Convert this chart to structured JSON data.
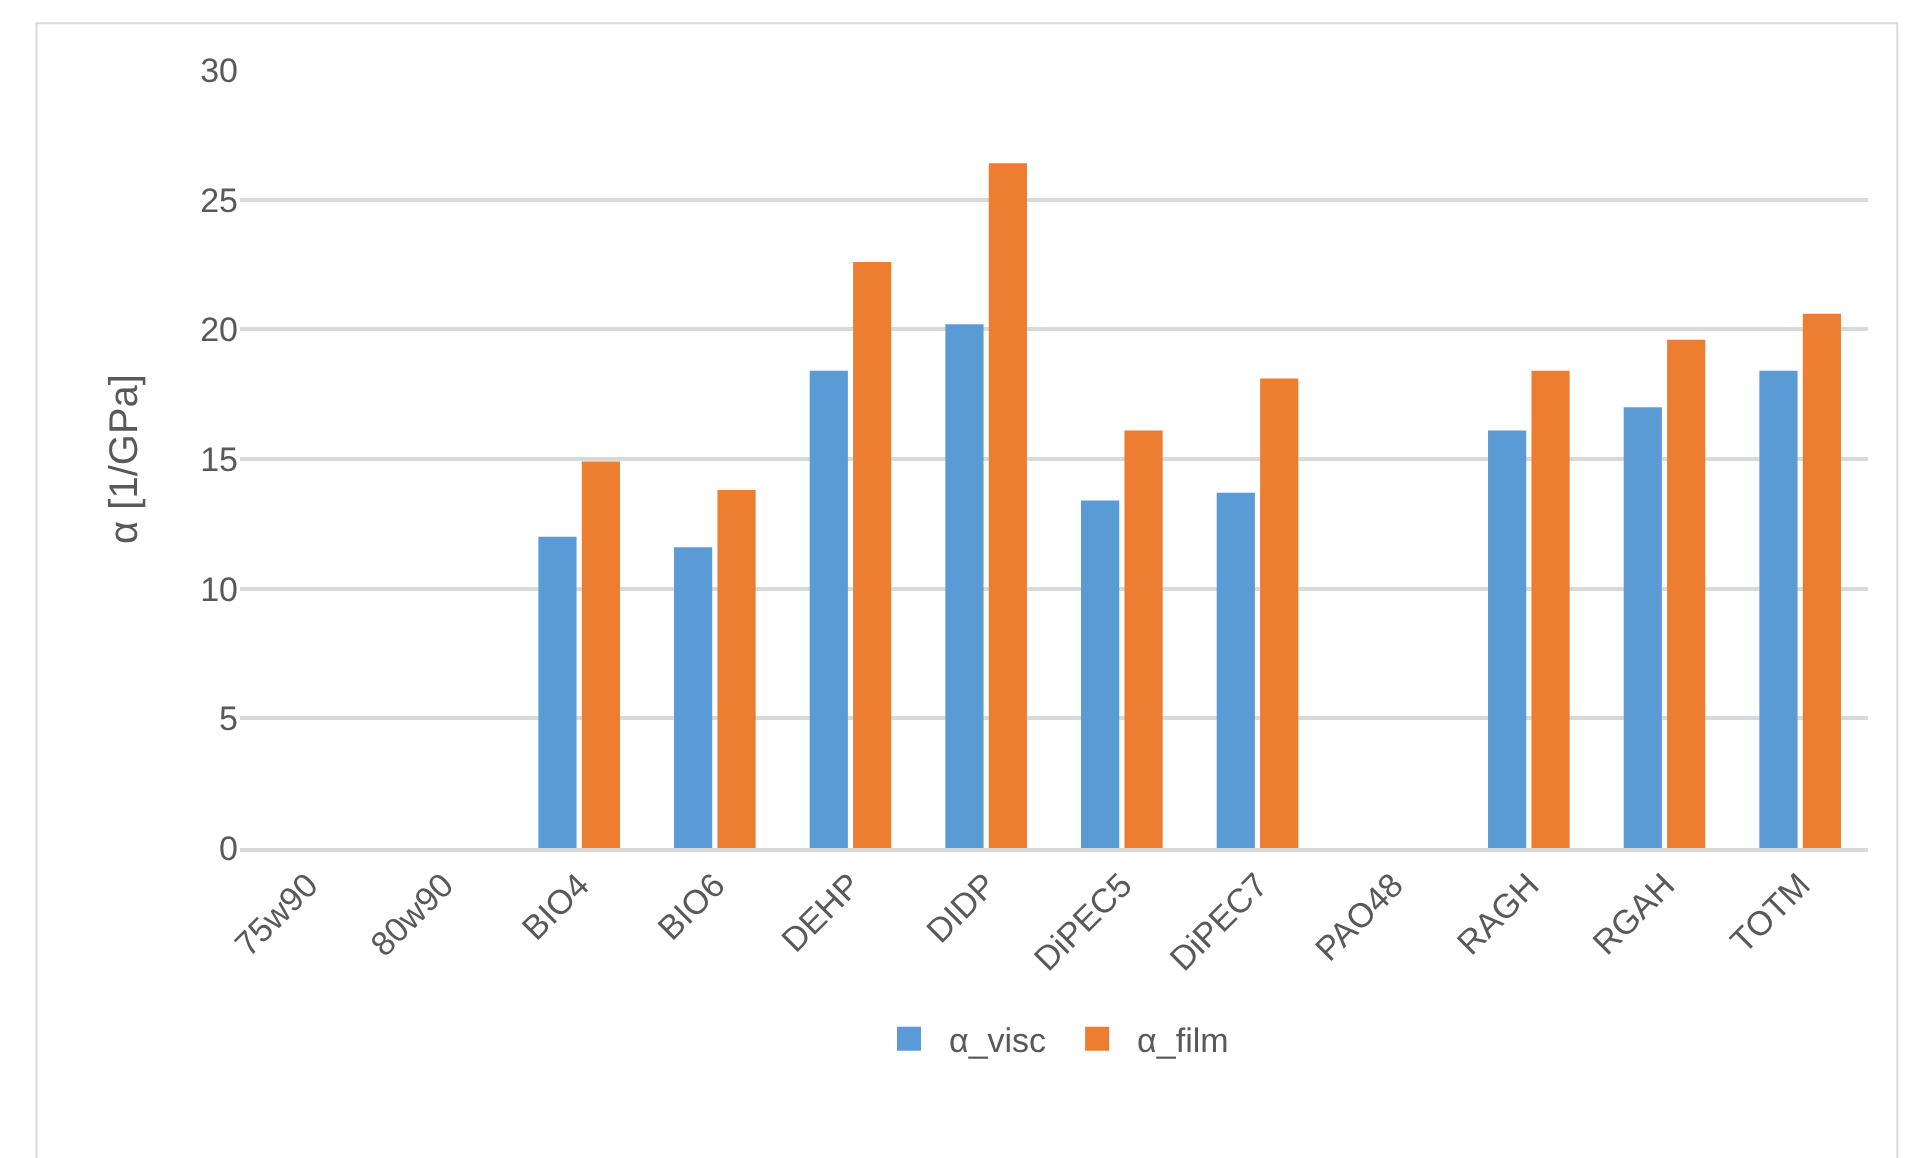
{
  "chart_data": {
    "type": "bar",
    "ylabel": "α [1/GPa]",
    "categories": [
      "75w90",
      "80w90",
      "BIO4",
      "BIO6",
      "DEHP",
      "DIDP",
      "DiPEC5",
      "DiPEC7",
      "PAO48",
      "RAGH",
      "RGAH",
      "TOTM"
    ],
    "series": [
      {
        "name": "α_visc",
        "color": "#5b9bd5",
        "values": [
          null,
          null,
          12.0,
          11.6,
          18.4,
          20.2,
          13.4,
          13.7,
          null,
          16.1,
          17.0,
          18.4
        ]
      },
      {
        "name": "α_film",
        "color": "#ed7d31",
        "values": [
          null,
          null,
          14.9,
          13.8,
          22.6,
          26.4,
          16.1,
          18.1,
          null,
          18.4,
          19.6,
          20.6
        ]
      }
    ],
    "ylim": [
      0,
      30
    ],
    "yticks": [
      0,
      5,
      10,
      15,
      20,
      25,
      30
    ],
    "grid": "y",
    "legend": "bottom"
  }
}
